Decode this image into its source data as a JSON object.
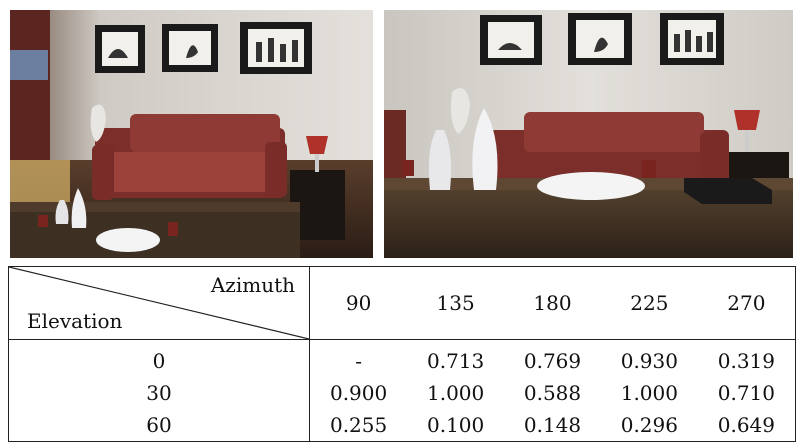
{
  "images": {
    "left_icon": "living-room-render-view-1",
    "right_icon": "living-room-render-view-2",
    "palette": {
      "wall": "#d9d6d2",
      "sofa": "#8f3a34",
      "floor": "#3a2a20",
      "table": "#4a3a2c"
    }
  },
  "table": {
    "header": {
      "azimuth_label": "Azimuth",
      "elevation_label": "Elevation",
      "azimuths": [
        "90",
        "135",
        "180",
        "225",
        "270"
      ]
    },
    "rows": [
      {
        "elevation": "0",
        "values": [
          "-",
          "0.713",
          "0.769",
          "0.930",
          "0.319"
        ]
      },
      {
        "elevation": "30",
        "values": [
          "0.900",
          "1.000",
          "0.588",
          "1.000",
          "0.710"
        ]
      },
      {
        "elevation": "60",
        "values": [
          "0.255",
          "0.100",
          "0.148",
          "0.296",
          "0.649"
        ]
      }
    ]
  }
}
